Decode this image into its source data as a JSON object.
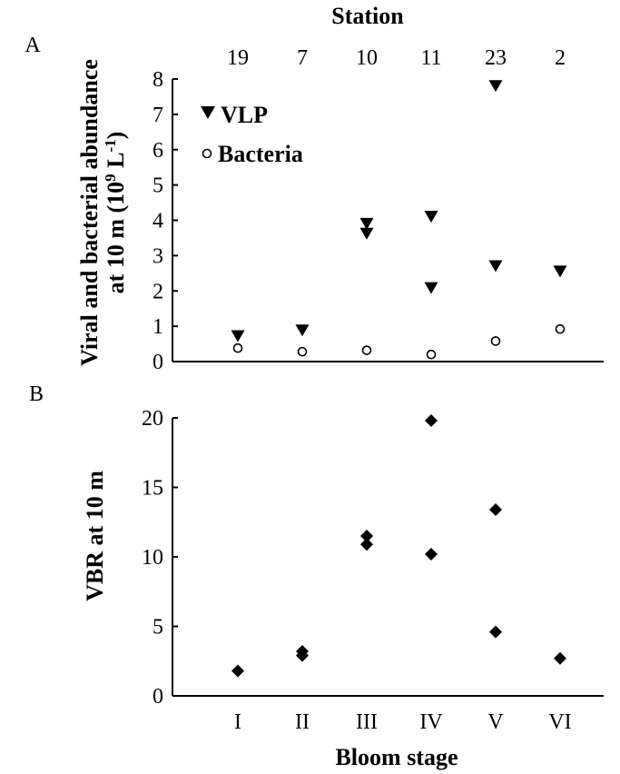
{
  "chart_data": [
    {
      "panel_label": "A",
      "type": "scatter",
      "top_axis_title": "Station",
      "top_ticks": [
        "19",
        "7",
        "10",
        "11",
        "23",
        "2"
      ],
      "ylabel_line1": "Viral and bacterial abundance",
      "ylabel_line2_pre": "at 10 m (10",
      "ylabel_line2_sup": "9",
      "ylabel_line2_mid": " L",
      "ylabel_line2_sup2": "-1",
      "ylabel_line2_post": ")",
      "ylim": [
        0,
        8
      ],
      "yticks": [
        0,
        1,
        2,
        3,
        4,
        5,
        6,
        7,
        8
      ],
      "legend_position": "top-left",
      "grid": false,
      "series": [
        {
          "name": "VLP",
          "marker": "triangle-down-filled",
          "points": [
            {
              "x": 1,
              "y": 0.72
            },
            {
              "x": 2,
              "y": 0.88
            },
            {
              "x": 3,
              "y": 3.62
            },
            {
              "x": 3,
              "y": 3.9
            },
            {
              "x": 4,
              "y": 2.08
            },
            {
              "x": 4,
              "y": 4.1
            },
            {
              "x": 5,
              "y": 2.7
            },
            {
              "x": 5,
              "y": 7.8
            },
            {
              "x": 6,
              "y": 2.55
            }
          ]
        },
        {
          "name": "Bacteria",
          "marker": "circle-open",
          "points": [
            {
              "x": 1,
              "y": 0.38
            },
            {
              "x": 2,
              "y": 0.28
            },
            {
              "x": 3,
              "y": 0.32
            },
            {
              "x": 4,
              "y": 0.2
            },
            {
              "x": 5,
              "y": 0.58
            },
            {
              "x": 6,
              "y": 0.92
            }
          ]
        }
      ]
    },
    {
      "panel_label": "B",
      "type": "scatter",
      "ylabel": "VBR at 10 m",
      "xlabel": "Bloom stage",
      "categories": [
        "I",
        "II",
        "III",
        "IV",
        "V",
        "VI"
      ],
      "ylim": [
        0,
        20
      ],
      "yticks": [
        0,
        5,
        10,
        15,
        20
      ],
      "grid": false,
      "series": [
        {
          "marker": "diamond-filled",
          "points": [
            {
              "x": 1,
              "y": 1.8
            },
            {
              "x": 2,
              "y": 2.9
            },
            {
              "x": 2,
              "y": 3.2
            },
            {
              "x": 3,
              "y": 10.9
            },
            {
              "x": 3,
              "y": 11.5
            },
            {
              "x": 4,
              "y": 10.2
            },
            {
              "x": 4,
              "y": 19.8
            },
            {
              "x": 5,
              "y": 4.6
            },
            {
              "x": 5,
              "y": 13.4
            },
            {
              "x": 6,
              "y": 2.7
            }
          ]
        }
      ]
    }
  ]
}
